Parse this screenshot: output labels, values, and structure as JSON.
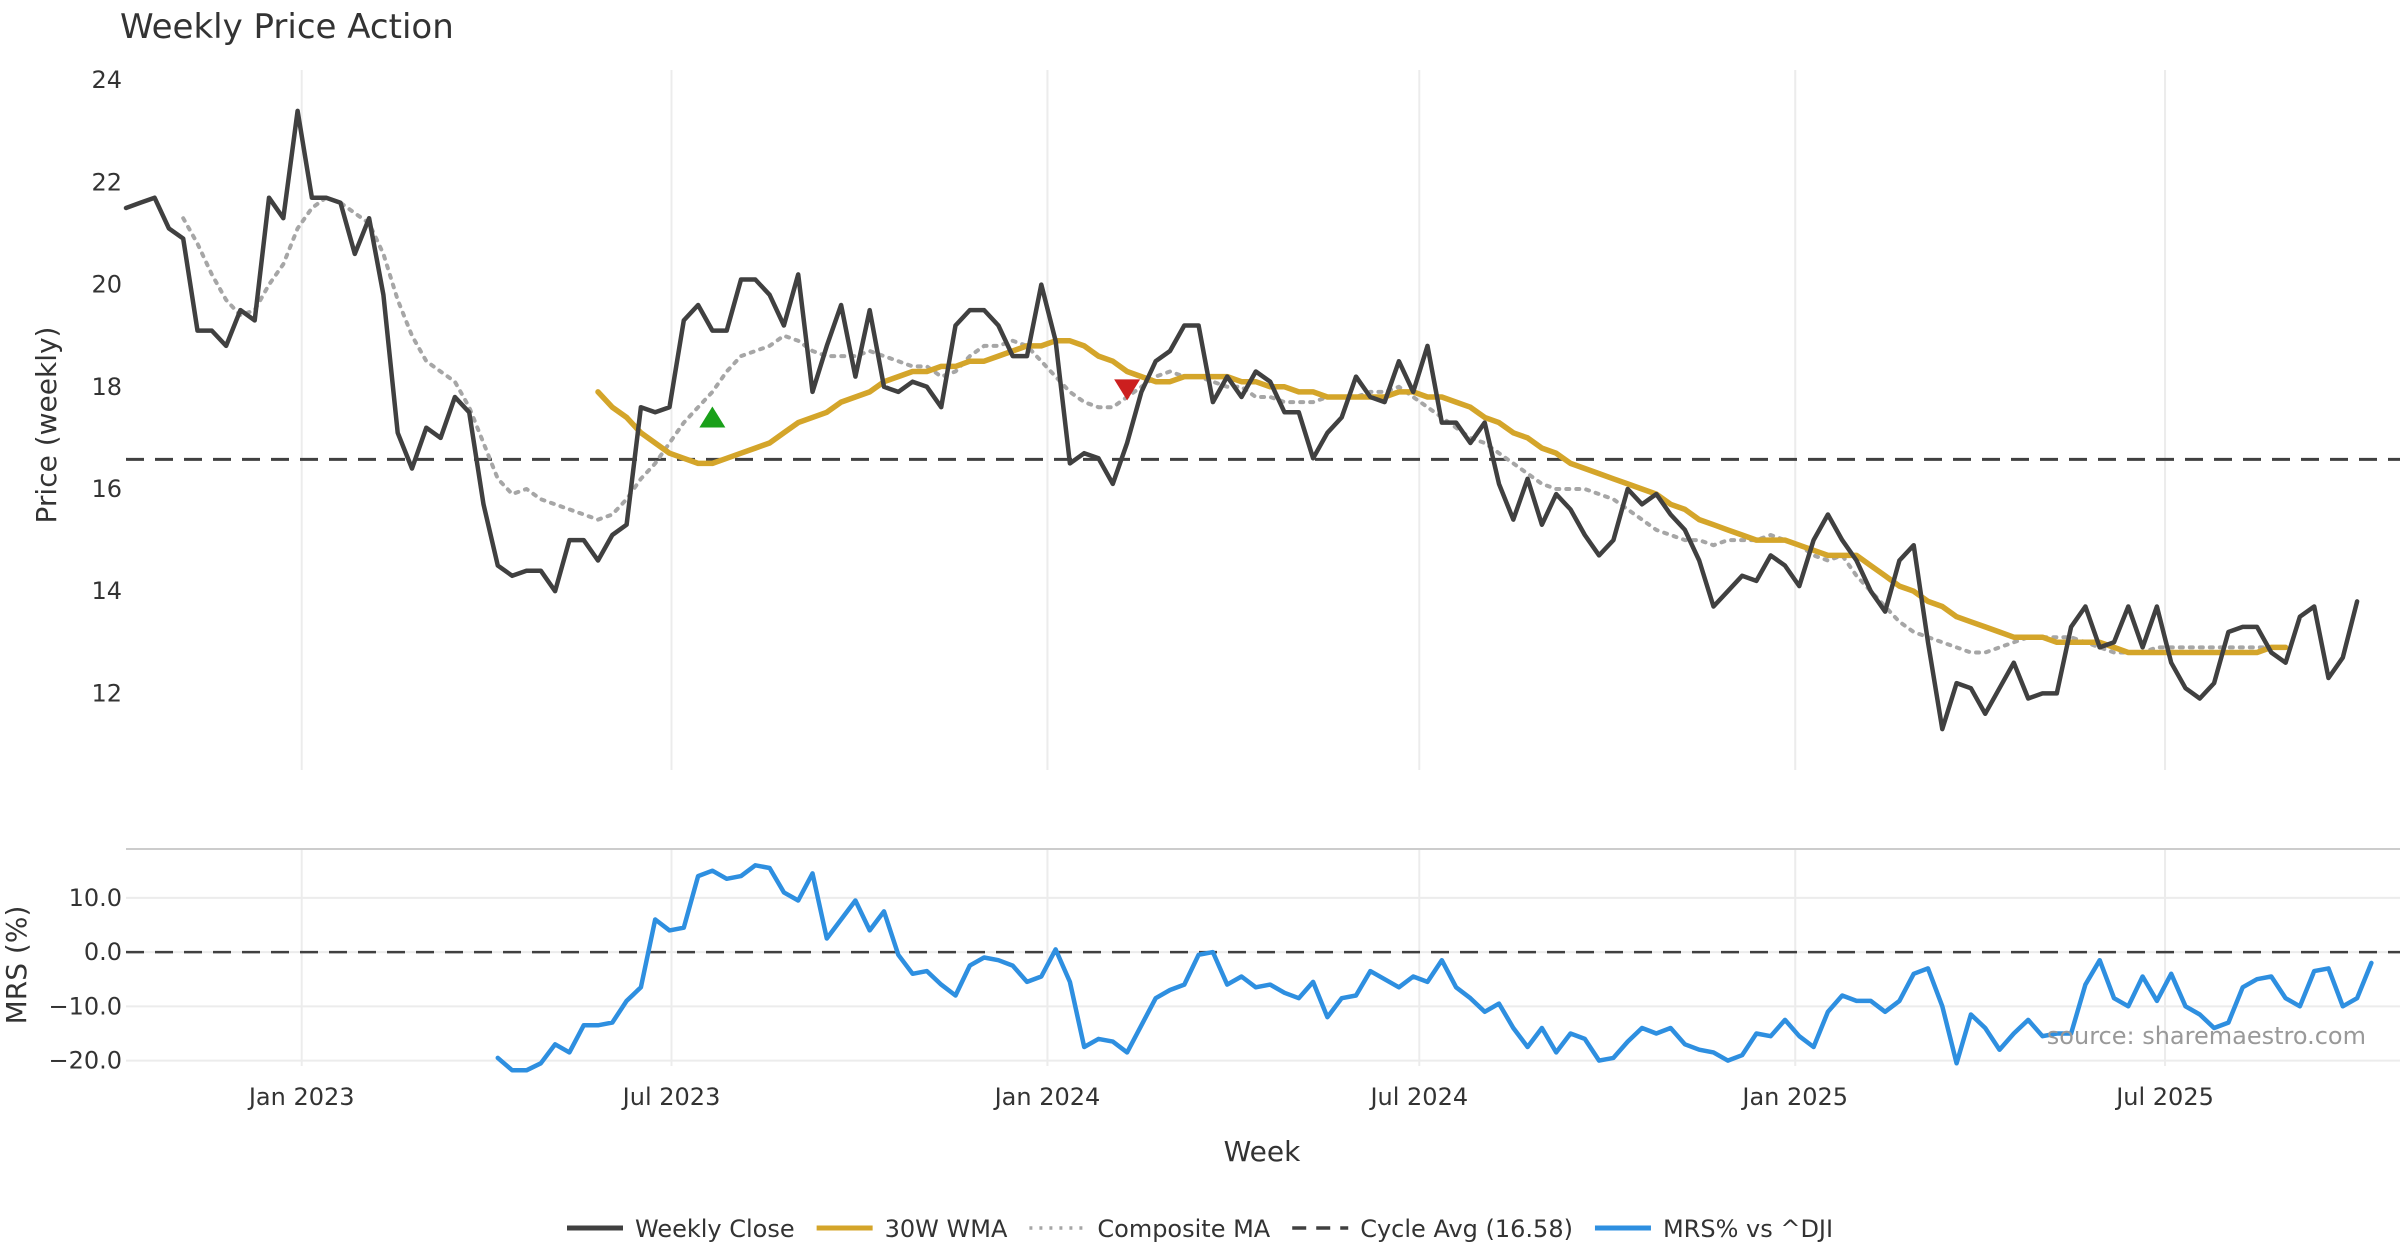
{
  "chart_data": [
    {
      "type": "line",
      "panel": "price",
      "title": "Weekly Price Action",
      "ylabel": "Price (weekly)",
      "ylim": [
        10.5,
        24.2
      ],
      "yticks": [
        12,
        14,
        16,
        18,
        20,
        22,
        24
      ],
      "x_start": "2022-10-07",
      "x_end": "2025-10-24",
      "x_step_weeks": 1,
      "series": [
        {
          "name": "Weekly Close",
          "color": "#404040",
          "values": [
            21.5,
            21.6,
            21.7,
            21.1,
            20.9,
            19.1,
            19.1,
            18.8,
            19.5,
            19.3,
            21.7,
            21.3,
            23.4,
            21.7,
            21.7,
            21.6,
            20.6,
            21.3,
            19.8,
            17.1,
            16.4,
            17.2,
            17.0,
            17.8,
            17.5,
            15.7,
            14.5,
            14.3,
            14.4,
            14.4,
            14.0,
            15.0,
            15.0,
            14.6,
            15.1,
            15.3,
            17.6,
            17.5,
            17.6,
            19.3,
            19.6,
            19.1,
            19.1,
            20.1,
            20.1,
            19.8,
            19.2,
            20.2,
            17.9,
            18.8,
            19.6,
            18.2,
            19.5,
            18.0,
            17.9,
            18.1,
            18.0,
            17.6,
            19.2,
            19.5,
            19.5,
            19.2,
            18.6,
            18.6,
            20.0,
            18.9,
            16.5,
            16.7,
            16.6,
            16.1,
            16.9,
            17.9,
            18.5,
            18.7,
            19.2,
            19.2,
            17.7,
            18.2,
            17.8,
            18.3,
            18.1,
            17.5,
            17.5,
            16.6,
            17.1,
            17.4,
            18.2,
            17.8,
            17.7,
            18.5,
            17.9,
            18.8,
            17.3,
            17.3,
            16.9,
            17.3,
            16.1,
            15.4,
            16.2,
            15.3,
            15.9,
            15.6,
            15.1,
            14.7,
            15.0,
            16.0,
            15.7,
            15.9,
            15.5,
            15.2,
            14.6,
            13.7,
            14.0,
            14.3,
            14.2,
            14.7,
            14.5,
            14.1,
            15.0,
            15.5,
            15.0,
            14.6,
            14.0,
            13.6,
            14.6,
            14.9,
            13.0,
            11.3,
            12.2,
            12.1,
            11.6,
            12.1,
            12.6,
            11.9,
            12.0,
            12.0,
            13.3,
            13.7,
            12.9,
            13.0,
            13.7,
            12.9,
            13.7,
            12.6,
            12.1,
            11.9,
            12.2,
            13.2,
            13.3,
            13.3,
            12.8,
            12.6,
            13.5,
            13.7,
            12.3,
            12.7,
            13.8
          ]
        },
        {
          "name": "30W WMA",
          "color": "#D4A52A",
          "start_index": 33,
          "values": [
            17.9,
            17.6,
            17.4,
            17.1,
            16.9,
            16.7,
            16.6,
            16.5,
            16.5,
            16.6,
            16.7,
            16.8,
            16.9,
            17.1,
            17.3,
            17.4,
            17.5,
            17.7,
            17.8,
            17.9,
            18.1,
            18.2,
            18.3,
            18.3,
            18.4,
            18.4,
            18.5,
            18.5,
            18.6,
            18.7,
            18.8,
            18.8,
            18.9,
            18.9,
            18.8,
            18.6,
            18.5,
            18.3,
            18.2,
            18.1,
            18.1,
            18.2,
            18.2,
            18.2,
            18.2,
            18.1,
            18.1,
            18.0,
            18.0,
            17.9,
            17.9,
            17.8,
            17.8,
            17.8,
            17.8,
            17.8,
            17.9,
            17.9,
            17.8,
            17.8,
            17.7,
            17.6,
            17.4,
            17.3,
            17.1,
            17.0,
            16.8,
            16.7,
            16.5,
            16.4,
            16.3,
            16.2,
            16.1,
            16.0,
            15.9,
            15.7,
            15.6,
            15.4,
            15.3,
            15.2,
            15.1,
            15.0,
            15.0,
            15.0,
            14.9,
            14.8,
            14.7,
            14.7,
            14.7,
            14.5,
            14.3,
            14.1,
            14.0,
            13.8,
            13.7,
            13.5,
            13.4,
            13.3,
            13.2,
            13.1,
            13.1,
            13.1,
            13.0,
            13.0,
            13.0,
            13.0,
            12.9,
            12.8,
            12.8,
            12.8,
            12.8,
            12.8,
            12.8,
            12.8,
            12.8,
            12.8,
            12.8,
            12.9,
            12.9
          ]
        },
        {
          "name": "Composite MA",
          "color": "#A6A6A6",
          "start_index": 4,
          "values": [
            21.3,
            20.8,
            20.2,
            19.7,
            19.4,
            19.5,
            20.0,
            20.4,
            21.1,
            21.5,
            21.7,
            21.6,
            21.4,
            21.2,
            20.6,
            19.7,
            19.0,
            18.5,
            18.3,
            18.1,
            17.6,
            16.9,
            16.2,
            15.9,
            16.0,
            15.8,
            15.7,
            15.6,
            15.5,
            15.4,
            15.5,
            15.8,
            16.2,
            16.5,
            16.9,
            17.3,
            17.6,
            17.9,
            18.3,
            18.6,
            18.7,
            18.8,
            19.0,
            18.9,
            18.7,
            18.6,
            18.6,
            18.6,
            18.7,
            18.6,
            18.5,
            18.4,
            18.4,
            18.2,
            18.3,
            18.6,
            18.8,
            18.8,
            18.9,
            18.8,
            18.5,
            18.2,
            17.9,
            17.7,
            17.6,
            17.6,
            17.8,
            18.0,
            18.2,
            18.3,
            18.2,
            18.2,
            18.1,
            18.0,
            18.0,
            17.8,
            17.8,
            17.7,
            17.7,
            17.7,
            17.8,
            17.8,
            17.8,
            17.9,
            17.9,
            18.0,
            17.8,
            17.6,
            17.4,
            17.2,
            17.0,
            16.9,
            16.7,
            16.5,
            16.3,
            16.1,
            16.0,
            16.0,
            16.0,
            15.9,
            15.8,
            15.6,
            15.4,
            15.2,
            15.1,
            15.0,
            15.0,
            14.9,
            15.0,
            15.0,
            15.0,
            15.1,
            15.0,
            14.9,
            14.7,
            14.6,
            14.7,
            14.3,
            14.0,
            13.7,
            13.4,
            13.2,
            13.1,
            13.0,
            12.9,
            12.8,
            12.8,
            12.9,
            13.0,
            13.1,
            13.1,
            13.1,
            13.1,
            13.0,
            12.9,
            12.8,
            12.8,
            12.8,
            12.9,
            12.9,
            12.9,
            12.9,
            12.9,
            12.9,
            12.9,
            12.9,
            12.9
          ]
        },
        {
          "name": "Cycle Avg (16.58)",
          "color": "#404040",
          "constant": 16.58
        }
      ],
      "markers": [
        {
          "name": "buy-signal",
          "shape": "up-triangle",
          "color": "#1aa01a",
          "index": 41,
          "value": 17.4
        },
        {
          "name": "sell-signal",
          "shape": "down-triangle",
          "color": "#cc1f1f",
          "index": 70,
          "value": 17.95
        }
      ]
    },
    {
      "type": "line",
      "panel": "mrs",
      "ylabel": "MRS (%)",
      "xlabel": "Week",
      "ylim": [
        -21,
        19
      ],
      "yticks": [
        10.0,
        0.0,
        -10.0,
        -20.0
      ],
      "ytick_labels": [
        "10.0",
        "0.0",
        "−10.0",
        "−20.0"
      ],
      "xtick_labels": [
        "Jan 2023",
        "Jul 2023",
        "Jan 2024",
        "Jul 2024",
        "Jan 2025",
        "Jul 2025"
      ],
      "xtick_dates": [
        "2023-01-01",
        "2023-07-01",
        "2024-01-01",
        "2024-07-01",
        "2025-01-01",
        "2025-07-01"
      ],
      "zero_line": 0,
      "series": [
        {
          "name": "MRS% vs ^DJI",
          "color": "#2E8FE0",
          "start_index": 26,
          "values": [
            -19.5,
            -21.8,
            -21.8,
            -20.5,
            -17.0,
            -18.5,
            -13.5,
            -13.5,
            -13.0,
            -9.0,
            -6.5,
            6.0,
            4.0,
            4.5,
            14.0,
            15.0,
            13.5,
            14.0,
            16.0,
            15.5,
            11.0,
            9.5,
            14.5,
            2.5,
            6.0,
            9.5,
            4.0,
            7.5,
            -0.5,
            -4.0,
            -3.5,
            -6.0,
            -8.0,
            -2.5,
            -1.0,
            -1.5,
            -2.5,
            -5.5,
            -4.5,
            0.5,
            -5.5,
            -17.5,
            -16.0,
            -16.5,
            -18.5,
            -13.5,
            -8.5,
            -7.0,
            -6.0,
            -0.5,
            0.0,
            -6.0,
            -4.5,
            -6.5,
            -6.0,
            -7.5,
            -8.5,
            -5.5,
            -12.0,
            -8.5,
            -8.0,
            -3.5,
            -5.0,
            -6.5,
            -4.5,
            -5.5,
            -1.5,
            -6.5,
            -8.5,
            -11.0,
            -9.5,
            -14.0,
            -17.5,
            -14.0,
            -18.5,
            -15.0,
            -16.0,
            -20.0,
            -19.5,
            -16.5,
            -14.0,
            -15.0,
            -14.0,
            -17.0,
            -18.0,
            -18.5,
            -20.0,
            -19.0,
            -15.0,
            -15.5,
            -12.5,
            -15.5,
            -17.5,
            -11.0,
            -8.0,
            -9.0,
            -9.0,
            -11.0,
            -9.0,
            -4.0,
            -3.0,
            -10.0,
            -20.5,
            -11.5,
            -14.0,
            -18.0,
            -15.0,
            -12.5,
            -15.5,
            -15.0,
            -15.0,
            -6.0,
            -1.5,
            -8.5,
            -10.0,
            -4.5,
            -9.0,
            -4.0,
            -10.0,
            -11.5,
            -14.0,
            -13.0,
            -6.5,
            -5.0,
            -4.5,
            -8.5,
            -10.0,
            -3.5,
            -3.0,
            -10.0,
            -8.5,
            -2.0
          ]
        }
      ]
    }
  ],
  "source": "source: sharemaestro.com",
  "legend": [
    {
      "label": "Weekly Close",
      "color": "#404040",
      "style": "solid"
    },
    {
      "label": "30W WMA",
      "color": "#D4A52A",
      "style": "solid"
    },
    {
      "label": "Composite MA",
      "color": "#A6A6A6",
      "style": "dotted"
    },
    {
      "label": "Cycle Avg (16.58)",
      "color": "#404040",
      "style": "dashed"
    },
    {
      "label": "MRS% vs ^DJI",
      "color": "#2E8FE0",
      "style": "solid"
    }
  ]
}
